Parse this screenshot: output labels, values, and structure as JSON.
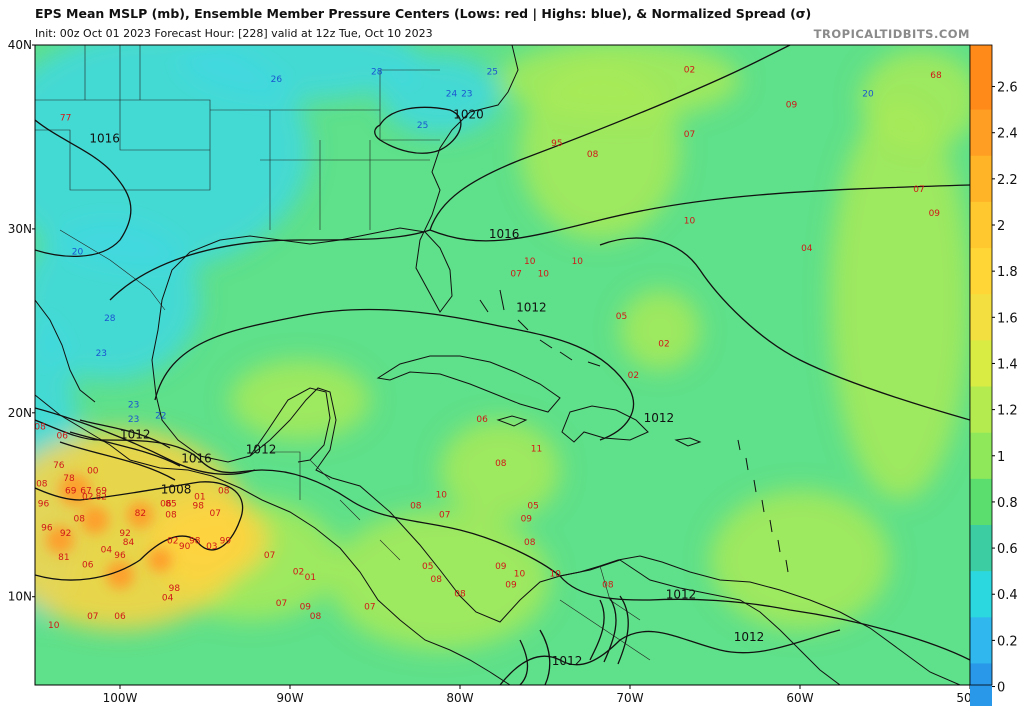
{
  "header": {
    "title": "EPS Mean MSLP (mb), Ensemble Member Pressure Centers (Lows: red | Highs: blue), & Normalized Spread (σ)",
    "subtitle": "Init: 00z Oct 01 2023   Forecast Hour: [228]   valid at 12z Tue, Oct 10 2023",
    "credit": "TROPICALTIDBITS.COM"
  },
  "axes": {
    "lat_labels": [
      "40N",
      "30N",
      "20N",
      "10N"
    ],
    "lon_labels": [
      "100W",
      "90W",
      "80W",
      "70W",
      "60W",
      "50W"
    ]
  },
  "colorbar": {
    "labels": [
      "2.6",
      "2.4",
      "2.2",
      "2",
      "1.8",
      "1.6",
      "1.4",
      "1.2",
      "1",
      "0.8",
      "0.6",
      "0.4",
      "0.2",
      "0"
    ],
    "colors": [
      "#ff8a1a",
      "#ff9e22",
      "#ffb428",
      "#ffc82e",
      "#ffd636",
      "#f3e040",
      "#d8ec44",
      "#b4ec50",
      "#8ee85a",
      "#5cde6e",
      "#3ccea2",
      "#2cd8e0",
      "#30b8ee",
      "#2a98e8"
    ]
  },
  "colors": {
    "spread_base": "#5fe08a",
    "spread_low": "#3fd8e0",
    "spread_mid": "#a8ea58",
    "spread_high": "#ffd440",
    "spread_max": "#ff9a2a",
    "land_line": "#111111",
    "isobar": "#111111"
  },
  "isobar_labels": [
    {
      "text": "1016",
      "lon": -101.8,
      "lat": 34.7
    },
    {
      "text": "1020",
      "lon": -80.4,
      "lat": 36.0
    },
    {
      "text": "1016",
      "lon": -78.3,
      "lat": 29.5
    },
    {
      "text": "1012",
      "lon": -76.7,
      "lat": 25.5
    },
    {
      "text": "1012",
      "lon": -69.2,
      "lat": 19.5
    },
    {
      "text": "1012",
      "lon": -100.0,
      "lat": 18.6
    },
    {
      "text": "1016",
      "lon": -96.4,
      "lat": 17.3
    },
    {
      "text": "1012",
      "lon": -92.6,
      "lat": 17.8
    },
    {
      "text": "1008",
      "lon": -97.6,
      "lat": 15.6
    },
    {
      "text": "1012",
      "lon": -67.9,
      "lat": 9.9
    },
    {
      "text": "1012",
      "lon": -63.9,
      "lat": 7.6
    },
    {
      "text": "1012",
      "lon": -74.6,
      "lat": 6.3
    }
  ],
  "lows": [
    {
      "text": "02",
      "lon": -66.5,
      "lat": 38.5
    },
    {
      "text": "68",
      "lon": -52.0,
      "lat": 38.2
    },
    {
      "text": "09",
      "lon": -60.5,
      "lat": 36.6
    },
    {
      "text": "07",
      "lon": -66.5,
      "lat": 35.0
    },
    {
      "text": "95",
      "lon": -74.3,
      "lat": 34.5
    },
    {
      "text": "08",
      "lon": -72.2,
      "lat": 33.9
    },
    {
      "text": "07",
      "lon": -53.0,
      "lat": 32.0
    },
    {
      "text": "09",
      "lon": -52.1,
      "lat": 30.7
    },
    {
      "text": "10",
      "lon": -66.5,
      "lat": 30.3
    },
    {
      "text": "04",
      "lon": -59.6,
      "lat": 28.8
    },
    {
      "text": "10",
      "lon": -75.9,
      "lat": 28.1
    },
    {
      "text": "10",
      "lon": -73.1,
      "lat": 28.1
    },
    {
      "text": "07",
      "lon": -76.7,
      "lat": 27.4
    },
    {
      "text": "10",
      "lon": -75.1,
      "lat": 27.4
    },
    {
      "text": "05",
      "lon": -70.5,
      "lat": 25.1
    },
    {
      "text": "02",
      "lon": -68.0,
      "lat": 23.6
    },
    {
      "text": "02",
      "lon": -69.8,
      "lat": 21.9
    },
    {
      "text": "06",
      "lon": -78.7,
      "lat": 19.5
    },
    {
      "text": "11",
      "lon": -75.5,
      "lat": 17.9
    },
    {
      "text": "08",
      "lon": -77.6,
      "lat": 17.1
    },
    {
      "text": "10",
      "lon": -81.1,
      "lat": 15.4
    },
    {
      "text": "08",
      "lon": -82.6,
      "lat": 14.8
    },
    {
      "text": "07",
      "lon": -80.9,
      "lat": 14.3
    },
    {
      "text": "05",
      "lon": -75.7,
      "lat": 14.8
    },
    {
      "text": "09",
      "lon": -76.1,
      "lat": 14.1
    },
    {
      "text": "08",
      "lon": -75.9,
      "lat": 12.8
    },
    {
      "text": "05",
      "lon": -81.9,
      "lat": 11.5
    },
    {
      "text": "08",
      "lon": -81.4,
      "lat": 10.8
    },
    {
      "text": "08",
      "lon": -80.0,
      "lat": 10.0
    },
    {
      "text": "09",
      "lon": -77.6,
      "lat": 11.5
    },
    {
      "text": "10",
      "lon": -76.5,
      "lat": 11.1
    },
    {
      "text": "09",
      "lon": -77.0,
      "lat": 10.5
    },
    {
      "text": "10",
      "lon": -74.4,
      "lat": 11.1
    },
    {
      "text": "08",
      "lon": -71.3,
      "lat": 10.5
    },
    {
      "text": "02",
      "lon": -89.5,
      "lat": 11.2
    },
    {
      "text": "01",
      "lon": -88.8,
      "lat": 10.9
    },
    {
      "text": "07",
      "lon": -90.5,
      "lat": 9.5
    },
    {
      "text": "09",
      "lon": -89.1,
      "lat": 9.3
    },
    {
      "text": "08",
      "lon": -88.5,
      "lat": 8.8
    },
    {
      "text": "07",
      "lon": -85.3,
      "lat": 9.3
    },
    {
      "text": "98",
      "lon": -96.8,
      "lat": 10.3
    },
    {
      "text": "04",
      "lon": -97.2,
      "lat": 9.8
    },
    {
      "text": "07",
      "lon": -101.6,
      "lat": 8.8
    },
    {
      "text": "06",
      "lon": -100.0,
      "lat": 8.8
    },
    {
      "text": "10",
      "lon": -103.9,
      "lat": 8.3
    },
    {
      "text": "06",
      "lon": -101.9,
      "lat": 11.6
    },
    {
      "text": "96",
      "lon": -100.0,
      "lat": 12.1
    },
    {
      "text": "04",
      "lon": -100.8,
      "lat": 12.4
    },
    {
      "text": "81",
      "lon": -103.3,
      "lat": 12.0
    },
    {
      "text": "92",
      "lon": -103.2,
      "lat": 13.3
    },
    {
      "text": "84",
      "lon": -99.5,
      "lat": 12.8
    },
    {
      "text": "92",
      "lon": -99.7,
      "lat": 13.3
    },
    {
      "text": "08",
      "lon": -102.4,
      "lat": 14.1
    },
    {
      "text": "82",
      "lon": -98.8,
      "lat": 14.4
    },
    {
      "text": "08",
      "lon": -97.0,
      "lat": 14.3
    },
    {
      "text": "98",
      "lon": -95.4,
      "lat": 14.8
    },
    {
      "text": "01",
      "lon": -95.3,
      "lat": 15.3
    },
    {
      "text": "07",
      "lon": -94.4,
      "lat": 14.4
    },
    {
      "text": "06",
      "lon": -97.3,
      "lat": 14.9
    },
    {
      "text": "85",
      "lon": -97.0,
      "lat": 14.9
    },
    {
      "text": "98",
      "lon": -95.6,
      "lat": 12.9
    },
    {
      "text": "03",
      "lon": -94.6,
      "lat": 12.6
    },
    {
      "text": "99",
      "lon": -93.8,
      "lat": 12.9
    },
    {
      "text": "90",
      "lon": -96.2,
      "lat": 12.6
    },
    {
      "text": "02",
      "lon": -96.9,
      "lat": 12.9
    },
    {
      "text": "69",
      "lon": -102.9,
      "lat": 15.6
    },
    {
      "text": "67",
      "lon": -102.0,
      "lat": 15.6
    },
    {
      "text": "69",
      "lon": -101.1,
      "lat": 15.6
    },
    {
      "text": "82",
      "lon": -101.1,
      "lat": 15.3
    },
    {
      "text": "02",
      "lon": -101.9,
      "lat": 15.3
    },
    {
      "text": "78",
      "lon": -103.0,
      "lat": 16.3
    },
    {
      "text": "76",
      "lon": -103.6,
      "lat": 17.0
    },
    {
      "text": "00",
      "lon": -101.6,
      "lat": 16.7
    },
    {
      "text": "08",
      "lon": -104.6,
      "lat": 16.0
    },
    {
      "text": "96",
      "lon": -104.5,
      "lat": 14.9
    },
    {
      "text": "96",
      "lon": -104.3,
      "lat": 13.6
    },
    {
      "text": "08",
      "lon": -104.7,
      "lat": 19.1
    },
    {
      "text": "06",
      "lon": -103.4,
      "lat": 18.6
    },
    {
      "text": "08",
      "lon": -93.9,
      "lat": 15.6
    },
    {
      "text": "07",
      "lon": -91.2,
      "lat": 12.1
    },
    {
      "text": "77",
      "lon": -103.2,
      "lat": 35.9
    }
  ],
  "highs": [
    {
      "text": "26",
      "lon": -90.8,
      "lat": 38.0
    },
    {
      "text": "28",
      "lon": -84.9,
      "lat": 38.4
    },
    {
      "text": "25",
      "lon": -78.1,
      "lat": 38.4
    },
    {
      "text": "24",
      "lon": -80.5,
      "lat": 37.2
    },
    {
      "text": "23",
      "lon": -79.6,
      "lat": 37.2
    },
    {
      "text": "20",
      "lon": -56.0,
      "lat": 37.2
    },
    {
      "text": "20",
      "lon": -102.5,
      "lat": 28.6
    },
    {
      "text": "28",
      "lon": -100.6,
      "lat": 25.0
    },
    {
      "text": "23",
      "lon": -101.1,
      "lat": 23.1
    },
    {
      "text": "23",
      "lon": -99.2,
      "lat": 20.3
    },
    {
      "text": "23",
      "lon": -99.2,
      "lat": 19.5
    },
    {
      "text": "22",
      "lon": -97.6,
      "lat": 19.7
    },
    {
      "text": "25",
      "lon": -82.2,
      "lat": 35.5
    }
  ]
}
